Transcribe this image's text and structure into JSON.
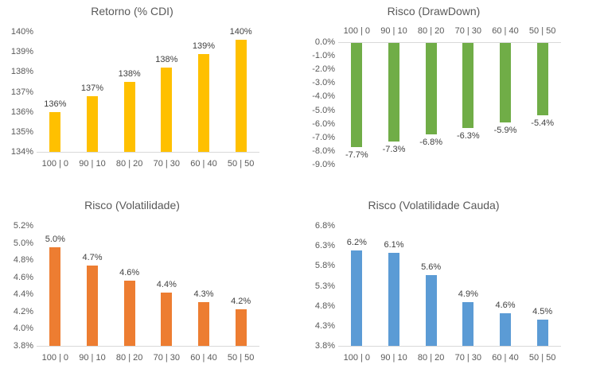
{
  "page": {
    "background": "#FFFFFF"
  },
  "styles": {
    "title_color": "#595959",
    "axis_text_color": "#595959",
    "data_label_color": "#404040",
    "axis_line_color": "#D9D9D9"
  },
  "chart_data": [
    {
      "type": "bar",
      "title": "Retorno (% CDI)",
      "orientation": "up",
      "bar_color": "#FFC000",
      "categories": [
        "100 | 0",
        "90 | 10",
        "80 | 20",
        "70 | 30",
        "60 | 40",
        "50 | 50"
      ],
      "values": [
        136.0,
        136.8,
        137.5,
        138.2,
        138.9,
        139.6
      ],
      "data_labels": [
        "136%",
        "137%",
        "138%",
        "138%",
        "139%",
        "140%"
      ],
      "ylim": [
        134,
        140
      ],
      "yticks": [
        "140%",
        "139%",
        "138%",
        "137%",
        "136%",
        "135%",
        "134%"
      ],
      "category_axis": "bottom",
      "data_label_position": "outside-end",
      "grid": false,
      "legend": "none"
    },
    {
      "type": "bar",
      "title": "Risco (DrawDown)",
      "orientation": "down",
      "bar_color": "#70AD47",
      "categories": [
        "100 | 0",
        "90 | 10",
        "80 | 20",
        "70 | 30",
        "60 | 40",
        "50 | 50"
      ],
      "values": [
        -7.7,
        -7.3,
        -6.8,
        -6.3,
        -5.9,
        -5.4
      ],
      "data_labels": [
        "-7.7%",
        "-7.3%",
        "-6.8%",
        "-6.3%",
        "-5.9%",
        "-5.4%"
      ],
      "ylim": [
        -9,
        0
      ],
      "yticks": [
        "0.0%",
        "-1.0%",
        "-2.0%",
        "-3.0%",
        "-4.0%",
        "-5.0%",
        "-6.0%",
        "-7.0%",
        "-8.0%",
        "-9.0%"
      ],
      "category_axis": "top",
      "data_label_position": "outside-end",
      "grid": false,
      "legend": "none"
    },
    {
      "type": "bar",
      "title": "Risco (Volatilidade)",
      "orientation": "up",
      "bar_color": "#ED7D31",
      "categories": [
        "100 | 0",
        "90 | 10",
        "80 | 20",
        "70 | 30",
        "60 | 40",
        "50 | 50"
      ],
      "values": [
        4.95,
        4.74,
        4.56,
        4.42,
        4.31,
        4.23
      ],
      "data_labels": [
        "5.0%",
        "4.7%",
        "4.6%",
        "4.4%",
        "4.3%",
        "4.2%"
      ],
      "ylim": [
        3.8,
        5.2
      ],
      "yticks": [
        "5.2%",
        "5.0%",
        "4.8%",
        "4.6%",
        "4.4%",
        "4.2%",
        "4.0%",
        "3.8%"
      ],
      "category_axis": "bottom",
      "data_label_position": "outside-end",
      "grid": false,
      "legend": "none"
    },
    {
      "type": "bar",
      "title": "Risco (Volatilidade Cauda)",
      "orientation": "up",
      "bar_color": "#5B9BD5",
      "categories": [
        "100 | 0",
        "90 | 10",
        "80 | 20",
        "70 | 30",
        "60 | 40",
        "50 | 50"
      ],
      "values": [
        6.19,
        6.13,
        5.57,
        4.89,
        4.61,
        4.46
      ],
      "data_labels": [
        "6.2%",
        "6.1%",
        "5.6%",
        "4.9%",
        "4.6%",
        "4.5%"
      ],
      "ylim": [
        3.8,
        6.8
      ],
      "yticks": [
        "6.8%",
        "6.3%",
        "5.8%",
        "5.3%",
        "4.8%",
        "4.3%",
        "3.8%"
      ],
      "category_axis": "bottom",
      "data_label_position": "outside-end",
      "grid": false,
      "legend": "none"
    }
  ]
}
